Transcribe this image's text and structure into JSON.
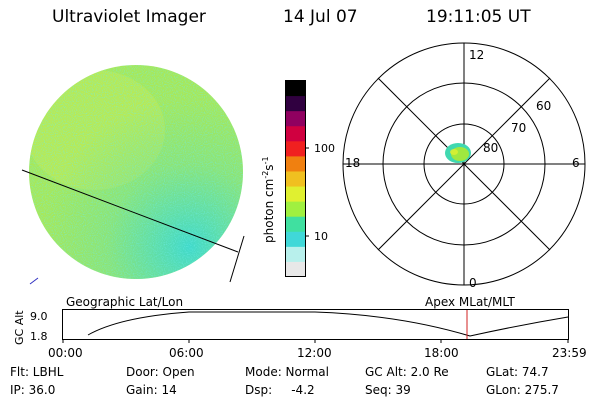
{
  "header": {
    "title": "Ultraviolet Imager",
    "date": "14 Jul 07",
    "time": "19:11:05 UT"
  },
  "colorbar": {
    "unit_prefix": "photon cm",
    "unit_exp1": "-2",
    "unit_mid": "s",
    "unit_exp2": "-1",
    "ticks": [
      "100",
      "10"
    ],
    "colors": [
      "#e8e8e8",
      "#b8f0ec",
      "#40d8d8",
      "#40e0a0",
      "#a0f040",
      "#e0f030",
      "#f0c020",
      "#f08010",
      "#f02020",
      "#d00040",
      "#900060",
      "#300040",
      "#000000"
    ]
  },
  "image_panel": {
    "projection_label": "Geographic Lat/Lon",
    "disk_color": "#a8e858",
    "haze_color": "#3ad8d0"
  },
  "polar_plot": {
    "projection_label": "Apex MLat/MLT",
    "lat_labels": [
      "60",
      "70",
      "80"
    ],
    "mlt_labels": {
      "top": "12",
      "left": "18",
      "right": "6",
      "bottom": "0"
    }
  },
  "altitude_plot": {
    "ylabel": "GC Alt",
    "y_ticks": [
      "9.0",
      "1.8"
    ],
    "x_ticks": [
      "00:00",
      "06:00",
      "12:00",
      "18:00",
      "23:59"
    ],
    "current_time_color": "#d02020"
  },
  "status": {
    "row1": {
      "filter": "Flt: LBHL",
      "door": "Door: Open",
      "mode": "Mode: Normal",
      "gc_alt": "GC Alt: 2.0 Re",
      "glat": "GLat:  74.7"
    },
    "row2": {
      "ip": "IP: 36.0",
      "gain": "Gain: 14",
      "dsp": "Dsp:     -4.2",
      "seq": "Seq: 39",
      "glon": "GLon: 275.7"
    }
  }
}
